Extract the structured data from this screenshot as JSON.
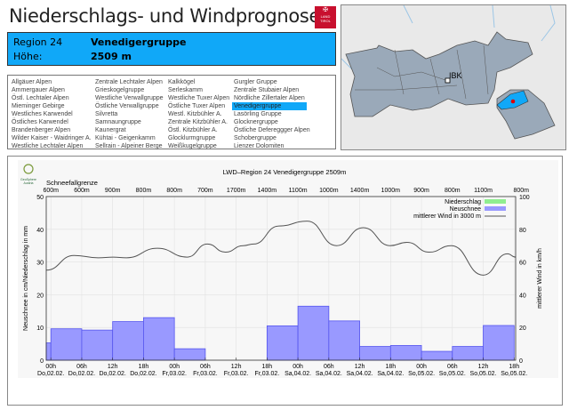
{
  "header": {
    "title": "Niederschlags- und Windprognose",
    "logo_text": "LAND TIROL"
  },
  "region": {
    "label": "Region 24",
    "name": "Venedigergruppe",
    "height_label": "Höhe:",
    "height": "2509 m"
  },
  "region_list": {
    "selected": "Venedigergruppe",
    "columns": [
      [
        "Allgäuer Alpen",
        "Ammergauer Alpen",
        "Östl. Lechtaler Alpen",
        "Mieminger Gebirge",
        "Westliches Karwendel",
        "Östliches Karwendel",
        "Brandenberger Alpen",
        "Wilder Kaiser - Waidringer A.",
        "Westliche Lechtaler Alpen"
      ],
      [
        "Zentrale Lechtaler Alpen",
        "Grieskogelgruppe",
        "Westliche Verwallgruppe",
        "Östliche Verwallgruppe",
        "Silvretta",
        "Samnaungruppe",
        "Kaunergrat",
        "Kühtai - Geigenkamm",
        "Sellrain - Alpeiner Berge"
      ],
      [
        "Kalkkögel",
        "Serleskamm",
        "Westliche Tuxer Alpen",
        "Östliche Tuxer Alpen",
        "Westl. Kitzbühler A.",
        "Zentrale Kitzbühler A.",
        "Östl. Kitzbühler A.",
        "Glocklurmgruppe",
        "Weißkugelgruppe"
      ],
      [
        "Gurgler Gruppe",
        "Zentrale Stubaier Alpen",
        "Nördliche Zillertaler Alpen",
        "Venedigergruppe",
        "Lasörling Gruppe",
        "Glocknergruppe",
        "Östliche Defereggger Alpen",
        "Schobergruppe",
        "Lienzer Dolomiten"
      ]
    ]
  },
  "map": {
    "city_label": "IBK",
    "highlight_color": "#10a8f8"
  },
  "chart_data": {
    "type": "bar",
    "title": "LWD–Region 24 Venedigergruppe 2509m",
    "brand": "GeoSphere Austria",
    "top_axis_label": "Schneefallgrenze",
    "snowline": [
      "600m",
      "600m",
      "900m",
      "800m",
      "800m",
      "700m",
      "1700m",
      "1400m",
      "1100m",
      "1000m",
      "1400m",
      "1000m",
      "900m",
      "800m",
      "1100m",
      "800m"
    ],
    "xtick_hours": [
      "00h",
      "06h",
      "12h",
      "18h",
      "00h",
      "06h",
      "12h",
      "18h",
      "00h",
      "06h",
      "12h",
      "18h",
      "00h",
      "06h",
      "12h",
      "18h"
    ],
    "xtick_days": [
      "Do,02.02.",
      "Do,02.02.",
      "Do,02.02.",
      "Do,02.02.",
      "Fr,03.02.",
      "Fr,03.02.",
      "Fr,03.02.",
      "Fr,03.02.",
      "Sa,04.02.",
      "Sa,04.02.",
      "Sa,04.02.",
      "Sa,04.02.",
      "So,05.02.",
      "So,05.02.",
      "So,05.02.",
      "So,05.02."
    ],
    "ylabel": "Neuschnee in cm/Niederschlag in mm",
    "y2label": "mittlerer Wind in km/h",
    "ylim": [
      0,
      50
    ],
    "y2lim": [
      0,
      100
    ],
    "yticks": [
      "0",
      "10",
      "20",
      "30",
      "40",
      "50"
    ],
    "y2ticks": [
      "0",
      "20",
      "40",
      "60",
      "80",
      "100"
    ],
    "legend": {
      "position": "top-right",
      "items": [
        "Niederschlag",
        "Neuschnee",
        "mittlerer Wind in 3000 m"
      ]
    },
    "colors": {
      "niederschlag": "#90ee90",
      "neuschnee": "#9999ff",
      "wind": "#555555"
    },
    "series": [
      {
        "name": "Neuschnee",
        "period_hours": 6,
        "first_period_start_hour": -6,
        "values": [
          5.3,
          9.6,
          9.2,
          11.8,
          13.0,
          3.5,
          0,
          0,
          10.5,
          16.5,
          12.0,
          4.2,
          4.5,
          2.7,
          4.2,
          10.6
        ]
      },
      {
        "name": "mittlerer Wind in 3000 m",
        "axis": "y2",
        "hours": [
          -0.9,
          4.5,
          9.2,
          12.1,
          14.7,
          20.7,
          26.5,
          30.4,
          33.9,
          37.4,
          39.4,
          44.3,
          49.8,
          55.5,
          60.7,
          65.9,
          69.2,
          73.5,
          77.8,
          84,
          88.7,
          90.3
        ],
        "values": [
          55,
          64,
          62.6,
          63,
          62.6,
          68.4,
          63,
          71,
          66,
          70,
          71,
          82,
          85,
          70,
          81,
          70,
          72,
          66,
          70,
          52,
          65,
          63
        ]
      }
    ],
    "x_range_hours": [
      -0.9,
      90.3
    ]
  }
}
